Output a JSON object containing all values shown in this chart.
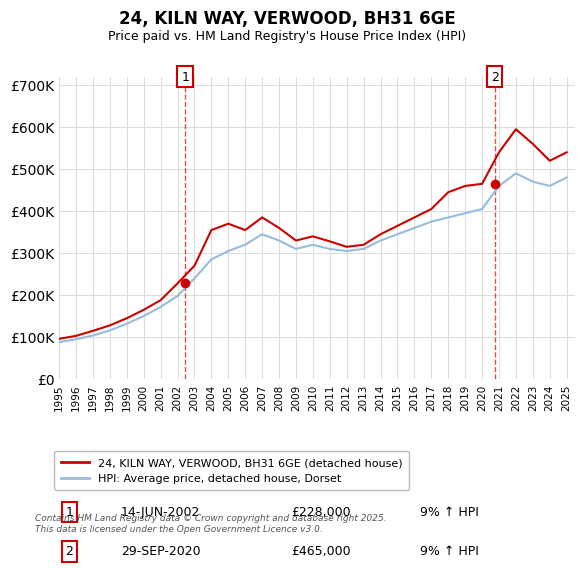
{
  "title": "24, KILN WAY, VERWOOD, BH31 6GE",
  "subtitle": "Price paid vs. HM Land Registry's House Price Index (HPI)",
  "legend_entry1": "24, KILN WAY, VERWOOD, BH31 6GE (detached house)",
  "legend_entry2": "HPI: Average price, detached house, Dorset",
  "marker1_label": "1",
  "marker1_date": "14-JUN-2002",
  "marker1_price": "£228,000",
  "marker1_hpi": "9% ↑ HPI",
  "marker1_year": 2002.45,
  "marker1_value": 228000,
  "marker2_label": "2",
  "marker2_date": "29-SEP-2020",
  "marker2_price": "£465,000",
  "marker2_hpi": "9% ↑ HPI",
  "marker2_year": 2020.75,
  "marker2_value": 465000,
  "footer": "Contains HM Land Registry data © Crown copyright and database right 2025.\nThis data is licensed under the Open Government Licence v3.0.",
  "line1_color": "#cc0000",
  "line2_color": "#99bbdd",
  "background_color": "#ffffff",
  "grid_color": "#dddddd",
  "ylim": [
    0,
    720000
  ],
  "xlim_start": 1995,
  "xlim_end": 2025.5,
  "hpi_years": [
    1995,
    1996,
    1997,
    1998,
    1999,
    2000,
    2001,
    2002,
    2003,
    2004,
    2005,
    2006,
    2007,
    2008,
    2009,
    2010,
    2011,
    2012,
    2013,
    2014,
    2015,
    2016,
    2017,
    2018,
    2019,
    2020,
    2021,
    2022,
    2023,
    2024,
    2025
  ],
  "hpi_values": [
    88000,
    95000,
    104000,
    116000,
    132000,
    150000,
    172000,
    198000,
    240000,
    285000,
    305000,
    320000,
    345000,
    330000,
    310000,
    320000,
    310000,
    305000,
    310000,
    330000,
    345000,
    360000,
    375000,
    385000,
    395000,
    405000,
    460000,
    490000,
    470000,
    460000,
    480000
  ],
  "prop_years": [
    1995,
    1996,
    1997,
    1998,
    1999,
    2000,
    2001,
    2002,
    2003,
    2004,
    2005,
    2006,
    2007,
    2008,
    2009,
    2010,
    2011,
    2012,
    2013,
    2014,
    2015,
    2016,
    2017,
    2018,
    2019,
    2020,
    2021,
    2022,
    2023,
    2024,
    2025
  ],
  "prop_values": [
    96000,
    103000,
    115000,
    128000,
    145000,
    165000,
    188000,
    228000,
    270000,
    355000,
    370000,
    355000,
    385000,
    360000,
    330000,
    340000,
    328000,
    315000,
    320000,
    345000,
    365000,
    385000,
    405000,
    445000,
    460000,
    465000,
    540000,
    595000,
    560000,
    520000,
    540000
  ]
}
